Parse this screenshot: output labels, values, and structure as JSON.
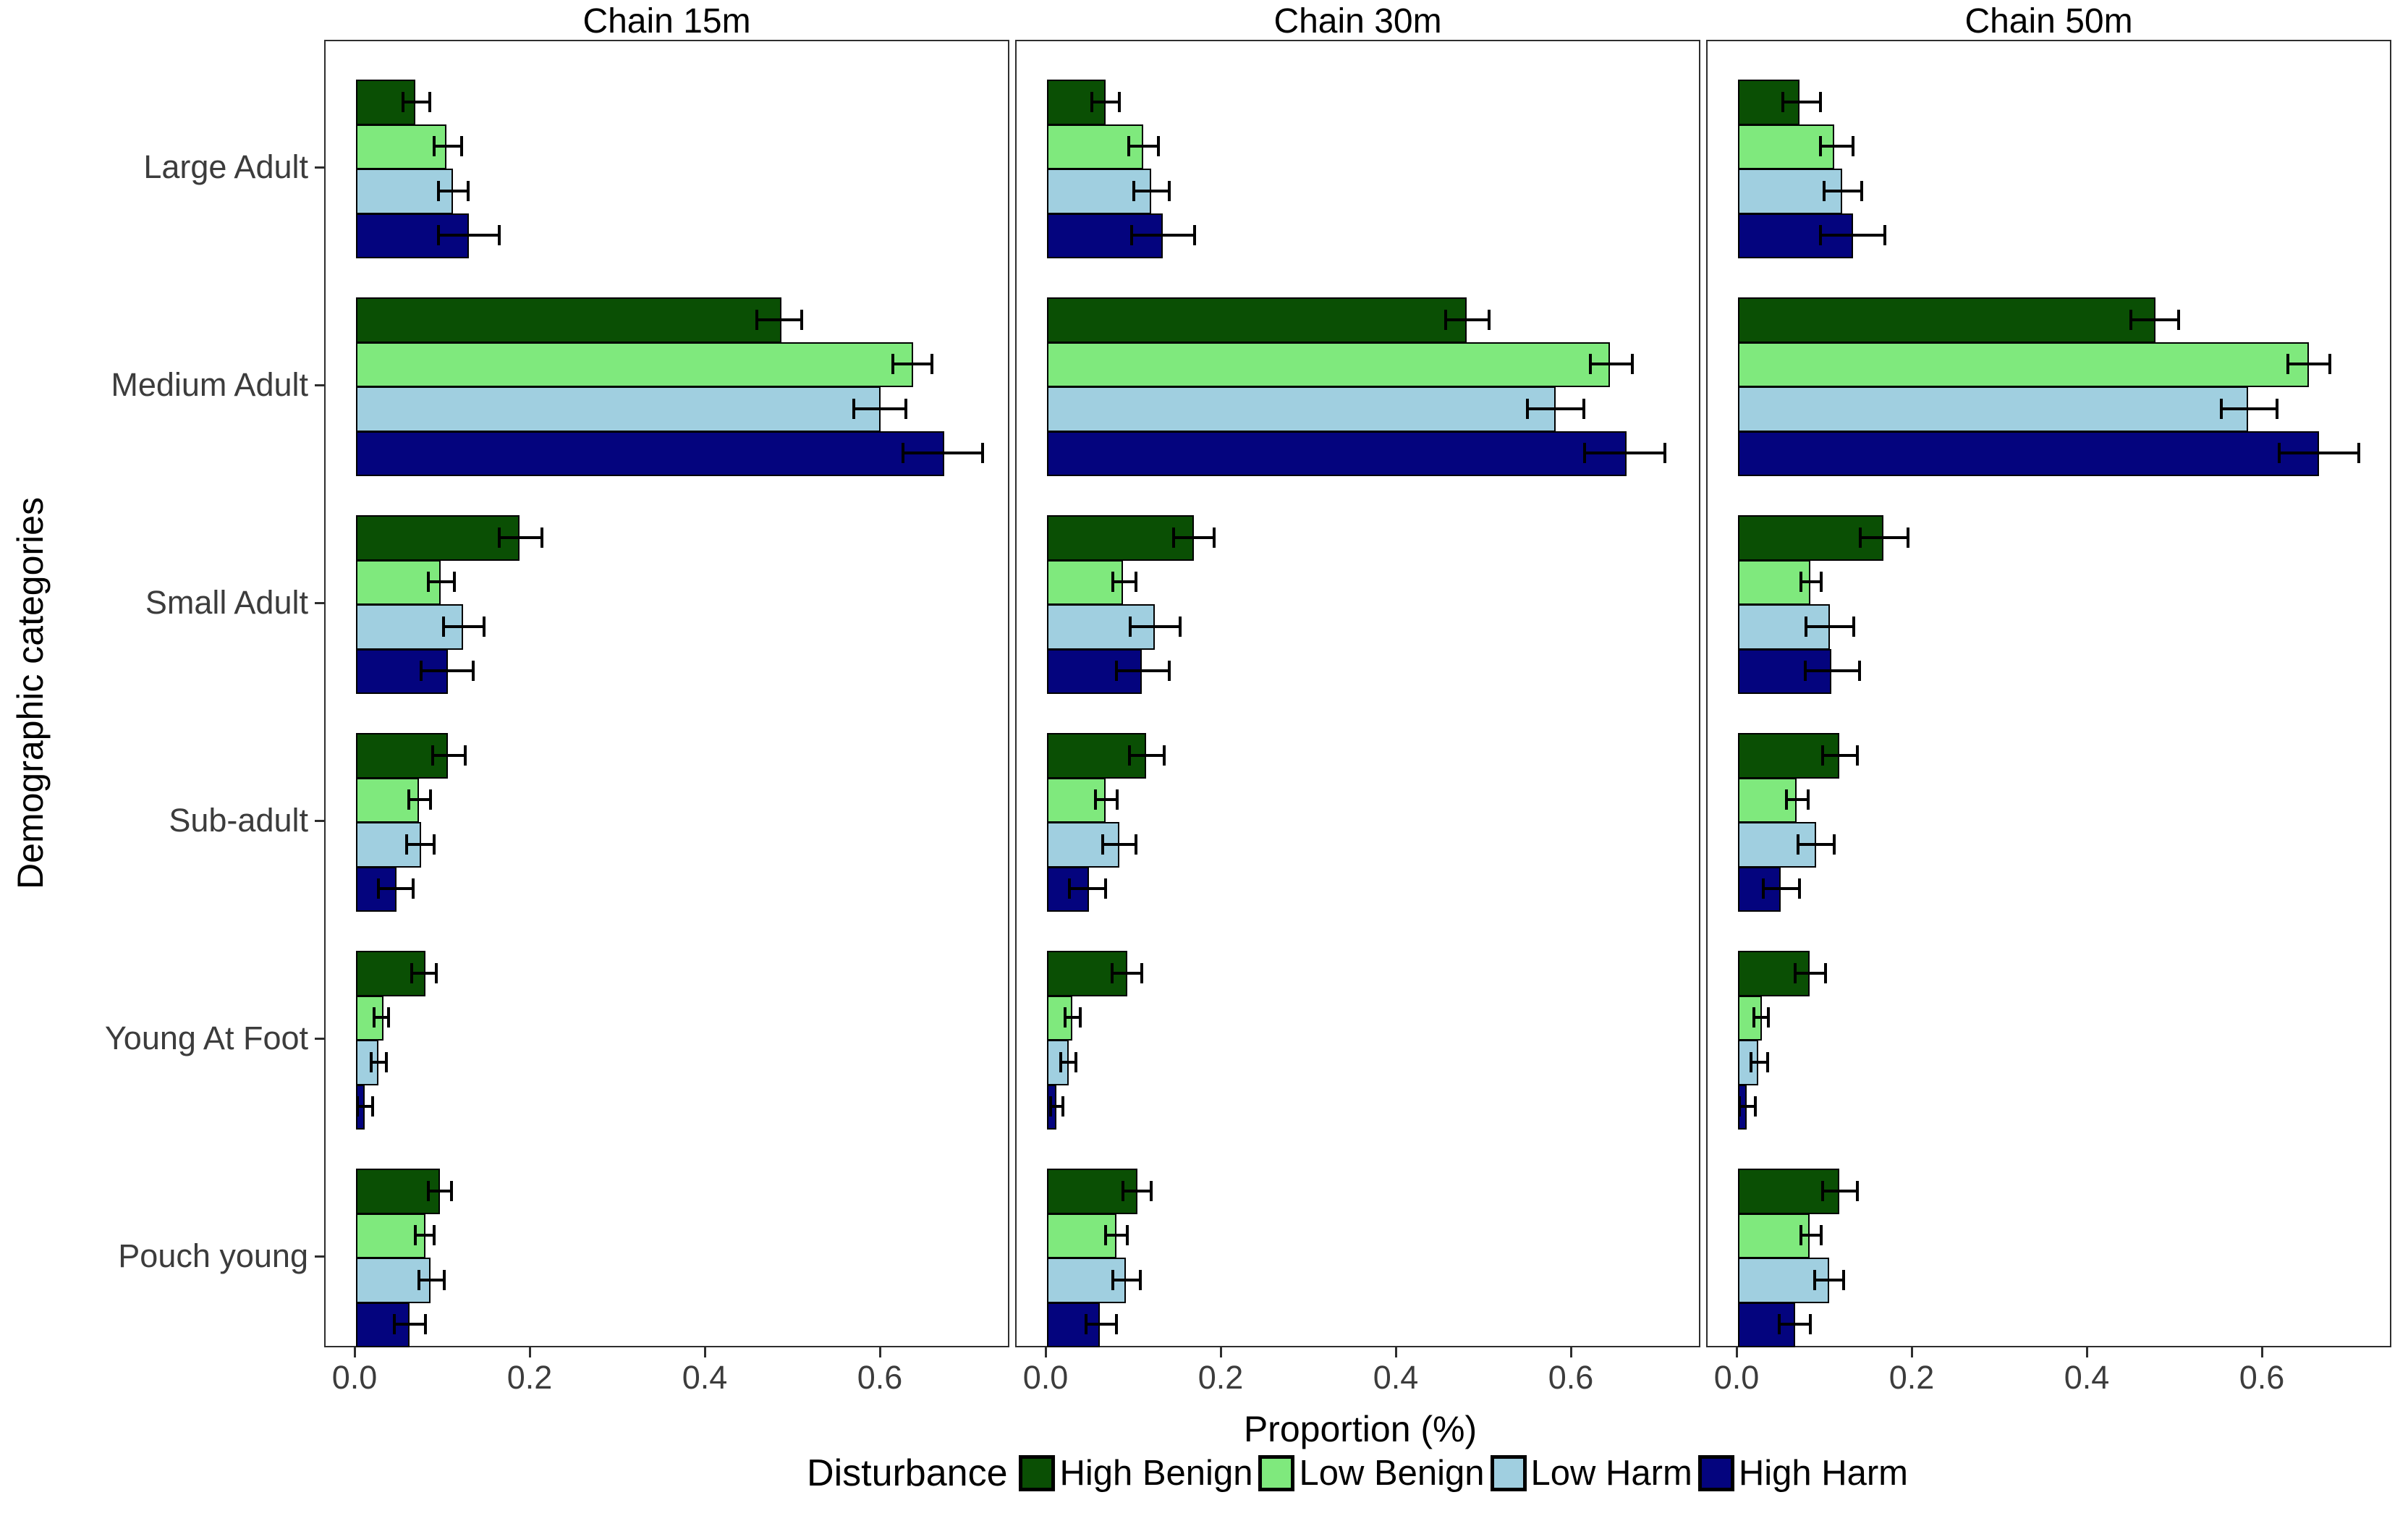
{
  "figure": {
    "x_axis_title": "Proportion (%)",
    "y_axis_title": "Demographic categories",
    "legend_title": "Disturbance",
    "x_ticks": [
      "0.0",
      "0.2",
      "0.4",
      "0.6"
    ],
    "categories": [
      "Large Adult",
      "Medium Adult",
      "Small Adult",
      "Sub-adult",
      "Young At Foot",
      "Pouch young"
    ],
    "series_names": [
      "High Benign",
      "Low Benign",
      "Low Harm",
      "High Harm"
    ],
    "series_colors": [
      "#0A4F04",
      "#7FE97D",
      "#A0CFE0",
      "#04047E"
    ]
  },
  "chart_data": {
    "type": "bar",
    "orientation": "horizontal",
    "xlabel": "Proportion (%)",
    "ylabel": "Demographic categories",
    "x_tick_values": [
      0.0,
      0.2,
      0.4,
      0.6
    ],
    "xlim": [
      -0.035,
      0.748
    ],
    "grid": false,
    "legend_title": "Disturbance",
    "legend_position": "bottom",
    "error_bars": true,
    "categories": [
      "Large Adult",
      "Medium Adult",
      "Small Adult",
      "Sub-adult",
      "Young At Foot",
      "Pouch young"
    ],
    "series": [
      "High Benign",
      "Low Benign",
      "Low Harm",
      "High Harm"
    ],
    "colors": [
      "#0A4F04",
      "#7FE97D",
      "#A0CFE0",
      "#04047E"
    ],
    "value_format": "[value, err_low, err_high] per series, per category",
    "facets": [
      {
        "title": "Chain 15m",
        "values": [
          [
            [
              0.068,
              0.054,
              0.084
            ],
            [
              0.103,
              0.089,
              0.121
            ],
            [
              0.111,
              0.094,
              0.128
            ],
            [
              0.129,
              0.094,
              0.164
            ]
          ],
          [
            [
              0.486,
              0.458,
              0.509
            ],
            [
              0.636,
              0.613,
              0.658
            ],
            [
              0.599,
              0.569,
              0.628
            ],
            [
              0.672,
              0.625,
              0.716
            ]
          ],
          [
            [
              0.187,
              0.164,
              0.212
            ],
            [
              0.097,
              0.083,
              0.112
            ],
            [
              0.122,
              0.1,
              0.146
            ],
            [
              0.105,
              0.074,
              0.134
            ]
          ],
          [
            [
              0.105,
              0.088,
              0.125
            ],
            [
              0.072,
              0.06,
              0.085
            ],
            [
              0.074,
              0.058,
              0.089
            ],
            [
              0.046,
              0.026,
              0.065
            ]
          ],
          [
            [
              0.079,
              0.064,
              0.092
            ],
            [
              0.031,
              0.021,
              0.037
            ],
            [
              0.026,
              0.017,
              0.035
            ],
            [
              0.01,
              0.002,
              0.019
            ]
          ],
          [
            [
              0.096,
              0.083,
              0.109
            ],
            [
              0.079,
              0.068,
              0.089
            ],
            [
              0.085,
              0.072,
              0.101
            ],
            [
              0.061,
              0.044,
              0.079
            ]
          ]
        ]
      },
      {
        "title": "Chain 30m",
        "values": [
          [
            [
              0.067,
              0.051,
              0.083
            ],
            [
              0.11,
              0.093,
              0.127
            ],
            [
              0.119,
              0.099,
              0.14
            ],
            [
              0.132,
              0.097,
              0.169
            ]
          ],
          [
            [
              0.479,
              0.455,
              0.505
            ],
            [
              0.643,
              0.621,
              0.669
            ],
            [
              0.581,
              0.549,
              0.613
            ],
            [
              0.662,
              0.614,
              0.706
            ]
          ],
          [
            [
              0.168,
              0.145,
              0.191
            ],
            [
              0.087,
              0.075,
              0.102
            ],
            [
              0.123,
              0.095,
              0.152
            ],
            [
              0.108,
              0.079,
              0.14
            ]
          ],
          [
            [
              0.113,
              0.094,
              0.134
            ],
            [
              0.067,
              0.055,
              0.08
            ],
            [
              0.083,
              0.064,
              0.102
            ],
            [
              0.048,
              0.026,
              0.067
            ]
          ],
          [
            [
              0.092,
              0.074,
              0.108
            ],
            [
              0.029,
              0.021,
              0.038
            ],
            [
              0.025,
              0.016,
              0.033
            ],
            [
              0.011,
              0.004,
              0.018
            ]
          ],
          [
            [
              0.103,
              0.087,
              0.119
            ],
            [
              0.079,
              0.067,
              0.092
            ],
            [
              0.09,
              0.075,
              0.107
            ],
            [
              0.06,
              0.045,
              0.079
            ]
          ]
        ]
      },
      {
        "title": "Chain 50m",
        "values": [
          [
            [
              0.07,
              0.051,
              0.094
            ],
            [
              0.11,
              0.094,
              0.131
            ],
            [
              0.119,
              0.098,
              0.141
            ],
            [
              0.131,
              0.094,
              0.168
            ]
          ],
          [
            [
              0.477,
              0.449,
              0.503
            ],
            [
              0.652,
              0.628,
              0.676
            ],
            [
              0.583,
              0.552,
              0.616
            ],
            [
              0.664,
              0.618,
              0.709
            ]
          ],
          [
            [
              0.166,
              0.14,
              0.194
            ],
            [
              0.083,
              0.072,
              0.095
            ],
            [
              0.105,
              0.078,
              0.132
            ],
            [
              0.107,
              0.077,
              0.139
            ]
          ],
          [
            [
              0.116,
              0.097,
              0.136
            ],
            [
              0.067,
              0.055,
              0.08
            ],
            [
              0.089,
              0.069,
              0.11
            ],
            [
              0.049,
              0.029,
              0.07
            ]
          ],
          [
            [
              0.082,
              0.065,
              0.1
            ],
            [
              0.027,
              0.018,
              0.035
            ],
            [
              0.023,
              0.015,
              0.034
            ],
            [
              0.01,
              0.002,
              0.02
            ]
          ],
          [
            [
              0.116,
              0.097,
              0.136
            ],
            [
              0.082,
              0.072,
              0.095
            ],
            [
              0.104,
              0.088,
              0.121
            ],
            [
              0.065,
              0.047,
              0.083
            ]
          ]
        ]
      }
    ]
  }
}
